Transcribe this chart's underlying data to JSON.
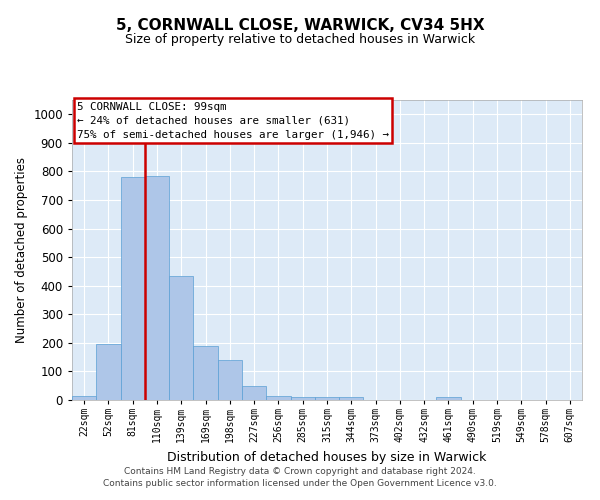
{
  "title1": "5, CORNWALL CLOSE, WARWICK, CV34 5HX",
  "title2": "Size of property relative to detached houses in Warwick",
  "xlabel": "Distribution of detached houses by size in Warwick",
  "ylabel": "Number of detached properties",
  "bar_labels": [
    "22sqm",
    "52sqm",
    "81sqm",
    "110sqm",
    "139sqm",
    "169sqm",
    "198sqm",
    "227sqm",
    "256sqm",
    "285sqm",
    "315sqm",
    "344sqm",
    "373sqm",
    "402sqm",
    "432sqm",
    "461sqm",
    "490sqm",
    "519sqm",
    "549sqm",
    "578sqm",
    "607sqm"
  ],
  "bar_values": [
    15,
    195,
    780,
    785,
    435,
    190,
    140,
    48,
    15,
    12,
    10,
    10,
    0,
    0,
    0,
    10,
    0,
    0,
    0,
    0,
    0
  ],
  "bar_color": "#aec6e8",
  "bar_edge_color": "#5a9fd4",
  "plot_bg_color": "#ddeaf7",
  "grid_color": "#ffffff",
  "annotation_text": "5 CORNWALL CLOSE: 99sqm\n← 24% of detached houses are smaller (631)\n75% of semi-detached houses are larger (1,946) →",
  "annotation_box_facecolor": "#ffffff",
  "annotation_box_edgecolor": "#cc0000",
  "vline_color": "#cc0000",
  "vline_x": 2.5,
  "ylim": [
    0,
    1050
  ],
  "yticks": [
    0,
    100,
    200,
    300,
    400,
    500,
    600,
    700,
    800,
    900,
    1000
  ],
  "footnote1": "Contains HM Land Registry data © Crown copyright and database right 2024.",
  "footnote2": "Contains public sector information licensed under the Open Government Licence v3.0."
}
